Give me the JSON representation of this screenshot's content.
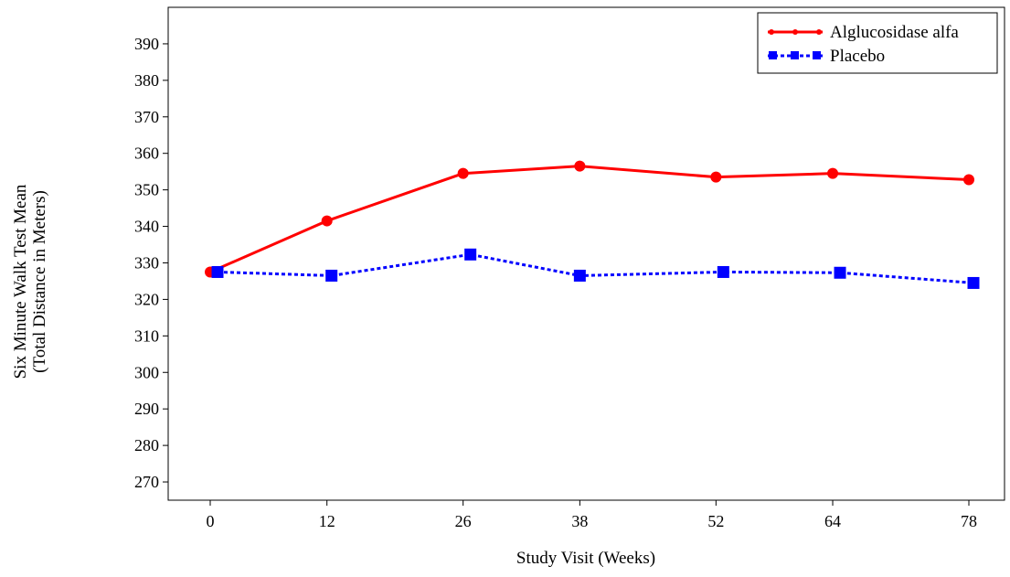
{
  "chart_data": {
    "type": "line",
    "title": "",
    "xlabel": "Study Visit (Weeks)",
    "ylabel_lines": [
      "Six Minute Walk Test Mean",
      "(Total Distance in Meters)"
    ],
    "x": [
      0,
      12,
      26,
      38,
      52,
      64,
      78
    ],
    "x_ticks": [
      "0",
      "12",
      "26",
      "38",
      "52",
      "64",
      "78"
    ],
    "y_ticks": [
      "270",
      "280",
      "290",
      "300",
      "310",
      "320",
      "330",
      "340",
      "350",
      "360",
      "370",
      "380",
      "390"
    ],
    "ylim": [
      265,
      400
    ],
    "grid": false,
    "legend_position": "top-right",
    "series": [
      {
        "name": "Alglucosidase alfa",
        "values": [
          327.5,
          341.5,
          354.5,
          356.5,
          353.5,
          354.5,
          352.8
        ],
        "color": "#ff0000",
        "line_style": "solid",
        "marker": "circle"
      },
      {
        "name": "Placebo",
        "values": [
          327.5,
          326.5,
          332.3,
          326.5,
          327.5,
          327.3,
          324.5
        ],
        "color": "#0000ff",
        "line_style": "dotted",
        "marker": "square"
      }
    ]
  }
}
